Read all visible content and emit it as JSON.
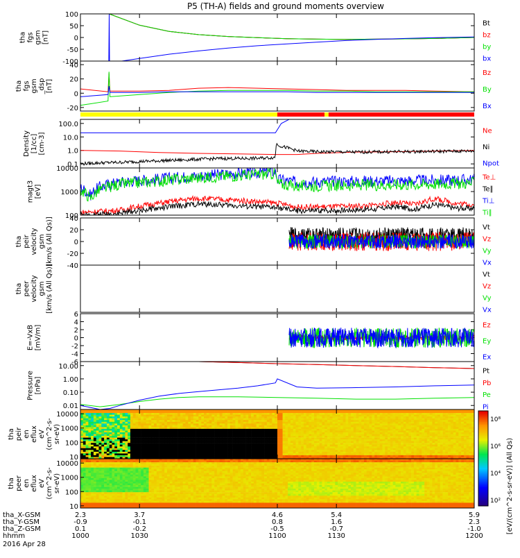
{
  "title": "P5 (TH-A) fields and ground moments overview",
  "colors": {
    "black": "#000000",
    "red": "#ff0000",
    "green": "#00e000",
    "blue": "#0000ff",
    "yellow": "#ffff00",
    "bg": "#ffffff"
  },
  "chart_data": [
    {
      "type": "line",
      "ylabel": [
        "tha",
        "fgs",
        "gsm",
        "[nT]"
      ],
      "yticks": [
        100,
        50,
        0,
        -50,
        -100
      ],
      "ylim": [
        -100,
        100
      ],
      "series": [
        {
          "name": "Bt",
          "color": "black",
          "x": [
            1000,
            1014,
            1014.6,
            1030,
            1045,
            1060,
            1075,
            1090,
            1105,
            1120,
            1135,
            1150,
            1165,
            1180,
            1200
          ],
          "y": [
            100,
            100,
            100,
            52,
            26,
            12,
            4,
            -1,
            -5,
            -7,
            -8,
            -7,
            -6,
            -4,
            0
          ]
        },
        {
          "name": "bz",
          "color": "red",
          "x": [
            1000,
            1014,
            1014.6,
            1030,
            1045,
            1060,
            1075,
            1090,
            1105,
            1120,
            1135,
            1150,
            1165,
            1180,
            1200
          ],
          "y": [
            100,
            100,
            100,
            52,
            26,
            12,
            4,
            -1,
            -5,
            -7,
            -8,
            -7,
            -6,
            -4,
            0
          ]
        },
        {
          "name": "by",
          "color": "green",
          "x": [
            1000,
            1014,
            1014.6,
            1030,
            1045,
            1060,
            1075,
            1090,
            1105,
            1120,
            1135,
            1150,
            1165,
            1180,
            1200
          ],
          "y": [
            100,
            100,
            100,
            52,
            26,
            12,
            4,
            -1,
            -5,
            -7,
            -8,
            -7,
            -6,
            -4,
            0
          ]
        },
        {
          "name": "bx",
          "color": "blue",
          "x": [
            1014.4,
            1014.6,
            1014.8,
            1021,
            1030,
            1045,
            1060,
            1075,
            1090,
            1105,
            1120,
            1135,
            1150,
            1165,
            1180,
            1200
          ],
          "y": [
            -100,
            100,
            -100,
            -100,
            -89,
            -71,
            -57,
            -45,
            -35,
            -27,
            -20,
            -13,
            -8,
            -4,
            -1,
            2
          ]
        }
      ]
    },
    {
      "type": "line",
      "ylabel": [
        "tha",
        "fgs",
        "gsm",
        "_dsp",
        "[nT]"
      ],
      "yticks": [
        40,
        20,
        0,
        -20
      ],
      "ylim": [
        -25,
        45
      ],
      "series": [
        {
          "name": "Bz",
          "color": "red",
          "x": [
            1000,
            1014,
            1014.5,
            1015,
            1030,
            1045,
            1060,
            1075,
            1090,
            1105,
            1120,
            1135,
            1150,
            1165,
            1180,
            1200
          ],
          "y": [
            6,
            2,
            28,
            3,
            3,
            4,
            7,
            8,
            7,
            6,
            5,
            4,
            4,
            4,
            3,
            2
          ]
        },
        {
          "name": "By",
          "color": "green",
          "x": [
            1000,
            1014,
            1014.5,
            1015,
            1030,
            1045,
            1060,
            1075,
            1090,
            1105,
            1120,
            1135,
            1150,
            1165,
            1180,
            1200
          ],
          "y": [
            -17,
            -11,
            30,
            -5,
            -2,
            1,
            3,
            4,
            4,
            4,
            3,
            3,
            2,
            2,
            2,
            2
          ]
        },
        {
          "name": "Bx",
          "color": "blue",
          "x": [
            1000,
            1014,
            1014.5,
            1015,
            1030,
            1045,
            1060,
            1075,
            1090,
            1105,
            1120,
            1135,
            1150,
            1165,
            1180,
            1200
          ],
          "y": [
            -5,
            -2,
            10,
            1,
            1,
            2,
            2,
            2,
            2,
            2,
            1,
            1,
            1,
            1,
            1,
            1
          ]
        }
      ]
    },
    {
      "type": "line",
      "ylabel": [
        "Density",
        "[1/cc]",
        "[cm-3]"
      ],
      "yticks": [
        "100.0",
        "10.0",
        "1.0",
        "0.1"
      ],
      "yscale": "log",
      "ylim": [
        0.05,
        200
      ],
      "series": [
        {
          "name": "Ne",
          "color": "red",
          "x": [
            1000,
            1020,
            1040,
            1060,
            1080,
            1100,
            1110,
            1120,
            1140,
            1160,
            1180,
            1200
          ],
          "y": [
            1.0,
            0.9,
            0.7,
            0.6,
            0.55,
            0.5,
            0.5,
            0.6,
            0.75,
            0.8,
            0.9,
            1.0
          ]
        },
        {
          "name": "Ni",
          "color": "black",
          "x": [
            1000,
            1010,
            1020,
            1030,
            1040,
            1050,
            1060,
            1070,
            1080,
            1090,
            1099,
            1099.5,
            1102,
            1110,
            1120,
            1140,
            1160,
            1180,
            1200
          ],
          "y": [
            0.1,
            0.12,
            0.13,
            0.15,
            0.17,
            0.19,
            0.22,
            0.25,
            0.25,
            0.26,
            0.3,
            3,
            2,
            0.9,
            0.8,
            0.75,
            0.8,
            0.85,
            0.9
          ]
        },
        {
          "name": "Npot",
          "color": "blue",
          "x": [
            1000,
            1020,
            1040,
            1060,
            1080,
            1099,
            1102,
            1110
          ],
          "y": [
            20,
            20,
            20,
            20,
            20,
            20,
            100,
            400
          ]
        }
      ]
    },
    {
      "type": "line",
      "ylabel": [
        "magt3",
        "[eV]"
      ],
      "yticks": [
        10000,
        1000,
        100
      ],
      "yscale": "log",
      "ylim": [
        100,
        10000
      ],
      "series": [
        {
          "name": "Te⊥",
          "color": "red",
          "x": [
            1000,
            1020,
            1040,
            1060,
            1080,
            1099,
            1110,
            1130,
            1150,
            1160,
            1170,
            1180,
            1190,
            1200
          ],
          "y": [
            130,
            160,
            320,
            520,
            420,
            330,
            220,
            230,
            260,
            350,
            280,
            500,
            320,
            280
          ]
        },
        {
          "name": "Te∥",
          "color": "black",
          "x": [
            1000,
            1020,
            1040,
            1060,
            1080,
            1099,
            1110,
            1130,
            1150,
            1160,
            1170,
            1180,
            1190,
            1200
          ],
          "y": [
            100,
            120,
            200,
            300,
            250,
            210,
            150,
            160,
            180,
            230,
            180,
            280,
            200,
            190
          ]
        },
        {
          "name": "Ti⊥",
          "color": "blue",
          "x": [
            1000,
            1005,
            1010,
            1020,
            1030,
            1040,
            1050,
            1060,
            1070,
            1080,
            1090,
            1099,
            1100,
            1110,
            1130,
            1150,
            1170,
            1200
          ],
          "y": [
            1500,
            700,
            1600,
            2500,
            3000,
            3400,
            4000,
            4600,
            5200,
            5800,
            6400,
            7000,
            3200,
            2500,
            2700,
            2800,
            2900,
            3200
          ]
        },
        {
          "name": "Ti∥",
          "color": "green",
          "x": [
            1000,
            1005,
            1010,
            1020,
            1030,
            1040,
            1050,
            1060,
            1070,
            1080,
            1090,
            1099,
            1100,
            1110,
            1130,
            1150,
            1170,
            1200
          ],
          "y": [
            1200,
            500,
            1200,
            2000,
            2400,
            2800,
            3300,
            3800,
            4300,
            4800,
            5300,
            5800,
            2200,
            1700,
            1800,
            1900,
            2000,
            2300
          ]
        }
      ]
    },
    {
      "type": "line",
      "ylabel": [
        "tha",
        "peir",
        "velocity",
        "gsm",
        "[km/s (All Qs)]"
      ],
      "yticks": [
        40,
        20,
        0,
        -20,
        -40
      ],
      "ylim": [
        -40,
        40
      ],
      "series": [
        {
          "name": "Vt",
          "color": "black",
          "x": [
            1106,
            1200
          ],
          "y": [
            10,
            10
          ]
        },
        {
          "name": "Vz",
          "color": "red",
          "x": [
            1106,
            1200
          ],
          "y": [
            0,
            0
          ]
        },
        {
          "name": "Vy",
          "color": "green",
          "x": [
            1106,
            1200
          ],
          "y": [
            0,
            0
          ]
        },
        {
          "name": "Vx",
          "color": "blue",
          "x": [
            1106,
            1200
          ],
          "y": [
            0,
            0
          ]
        }
      ]
    },
    {
      "type": "line",
      "ylabel": [
        "tha",
        "peer",
        "velocity",
        "gsm",
        "[km/s (All Qs)]"
      ],
      "yticks": [],
      "ylim": [
        0,
        1
      ],
      "legend": [
        "Vt",
        "Vz",
        "Vy",
        "Vx"
      ],
      "series": []
    },
    {
      "type": "line",
      "ylabel": [
        "E=-VxB",
        "[mV/m]"
      ],
      "yticks": [
        6,
        4,
        2,
        0,
        -2,
        -4,
        -6
      ],
      "ylim": [
        -6,
        6
      ],
      "series": [
        {
          "name": "Ez",
          "color": "red",
          "x": [
            1106,
            1200
          ],
          "y": [
            0,
            0
          ]
        },
        {
          "name": "Ey",
          "color": "green",
          "x": [
            1106,
            1200
          ],
          "y": [
            0,
            0
          ]
        },
        {
          "name": "Ex",
          "color": "blue",
          "x": [
            1106,
            1200
          ],
          "y": [
            0,
            0
          ]
        }
      ]
    },
    {
      "type": "line",
      "ylabel": [
        "Pressure",
        "[nPa]"
      ],
      "yticks": [
        "10.00",
        "1.00",
        "0.10",
        "0.01"
      ],
      "yscale": "log",
      "ylim": [
        0.005,
        20
      ],
      "series": [
        {
          "name": "Pt",
          "color": "black",
          "x": [
            1060,
            1080,
            1100,
            1120,
            1140,
            1160,
            1180,
            1200
          ],
          "y": [
            20,
            17,
            14,
            12,
            10,
            8.5,
            7,
            6
          ]
        },
        {
          "name": "Pb",
          "color": "red",
          "x": [
            1060,
            1080,
            1100,
            1120,
            1140,
            1160,
            1180,
            1200
          ],
          "y": [
            20,
            17,
            14,
            12,
            10,
            8.5,
            7,
            6
          ]
        },
        {
          "name": "Pe",
          "color": "green",
          "x": [
            1000,
            1010,
            1020,
            1030,
            1040,
            1050,
            1060,
            1080,
            1100,
            1120,
            1140,
            1160,
            1180,
            1200
          ],
          "y": [
            0.012,
            0.008,
            0.012,
            0.02,
            0.03,
            0.04,
            0.045,
            0.045,
            0.04,
            0.035,
            0.03,
            0.03,
            0.035,
            0.04
          ]
        },
        {
          "name": "Pi",
          "color": "blue",
          "x": [
            1000,
            1010,
            1015,
            1020,
            1030,
            1040,
            1050,
            1060,
            1070,
            1080,
            1090,
            1099,
            1100,
            1110,
            1120,
            1140,
            1160,
            1180,
            1200
          ],
          "y": [
            0.01,
            0.005,
            0.006,
            0.01,
            0.025,
            0.05,
            0.08,
            0.11,
            0.15,
            0.2,
            0.3,
            0.5,
            1.0,
            0.25,
            0.2,
            0.22,
            0.25,
            0.3,
            0.35
          ]
        }
      ]
    },
    {
      "type": "heatmap",
      "ylabel": [
        "tha",
        "peir",
        "en",
        "eflux",
        "eV",
        "(cm^2-s-",
        "sr-eV)"
      ],
      "yticks": [
        10000,
        1000,
        100,
        10
      ],
      "yscale": "log"
    },
    {
      "type": "heatmap",
      "ylabel": [
        "tha",
        "peer",
        "en",
        "eflux",
        "eV",
        "(cm^2-s-",
        "sr-eV)"
      ],
      "yticks": [
        10000,
        1000,
        100,
        10
      ],
      "yscale": "log"
    }
  ],
  "mode_bar": [
    {
      "x0": 1000,
      "x1": 1100,
      "color": "yellow"
    },
    {
      "x0": 1100,
      "x1": 1124,
      "color": "red"
    },
    {
      "x0": 1124,
      "x1": 1126,
      "color": "yellow"
    },
    {
      "x0": 1126,
      "x1": 1200,
      "color": "red"
    }
  ],
  "colorbar": {
    "label": "[eV/(cm^2-s-sr-eV)] (All Qs)",
    "tick_labels": [
      "10⁸",
      "10⁶",
      "10⁴",
      "10²"
    ]
  },
  "xaxis": {
    "range": [
      1000,
      1200
    ],
    "ticks": [
      1000,
      1030,
      1100,
      1130,
      1200
    ],
    "rows": [
      {
        "label": "tha_X-GSM",
        "values": [
          "2.3",
          "3.7",
          "4.6",
          "5.4",
          "5.9"
        ]
      },
      {
        "label": "tha_Y-GSM",
        "values": [
          "-0.9",
          "-0.1",
          "0.8",
          "1.6",
          "2.3"
        ]
      },
      {
        "label": "tha_Z-GSM",
        "values": [
          "0.1",
          "-0.2",
          "-0.5",
          "-0.7",
          "-1.0"
        ]
      },
      {
        "label": "hhmm",
        "values": [
          "1000",
          "1030",
          "1100",
          "1130",
          "1200"
        ]
      }
    ],
    "date": "2016 Apr 28"
  }
}
